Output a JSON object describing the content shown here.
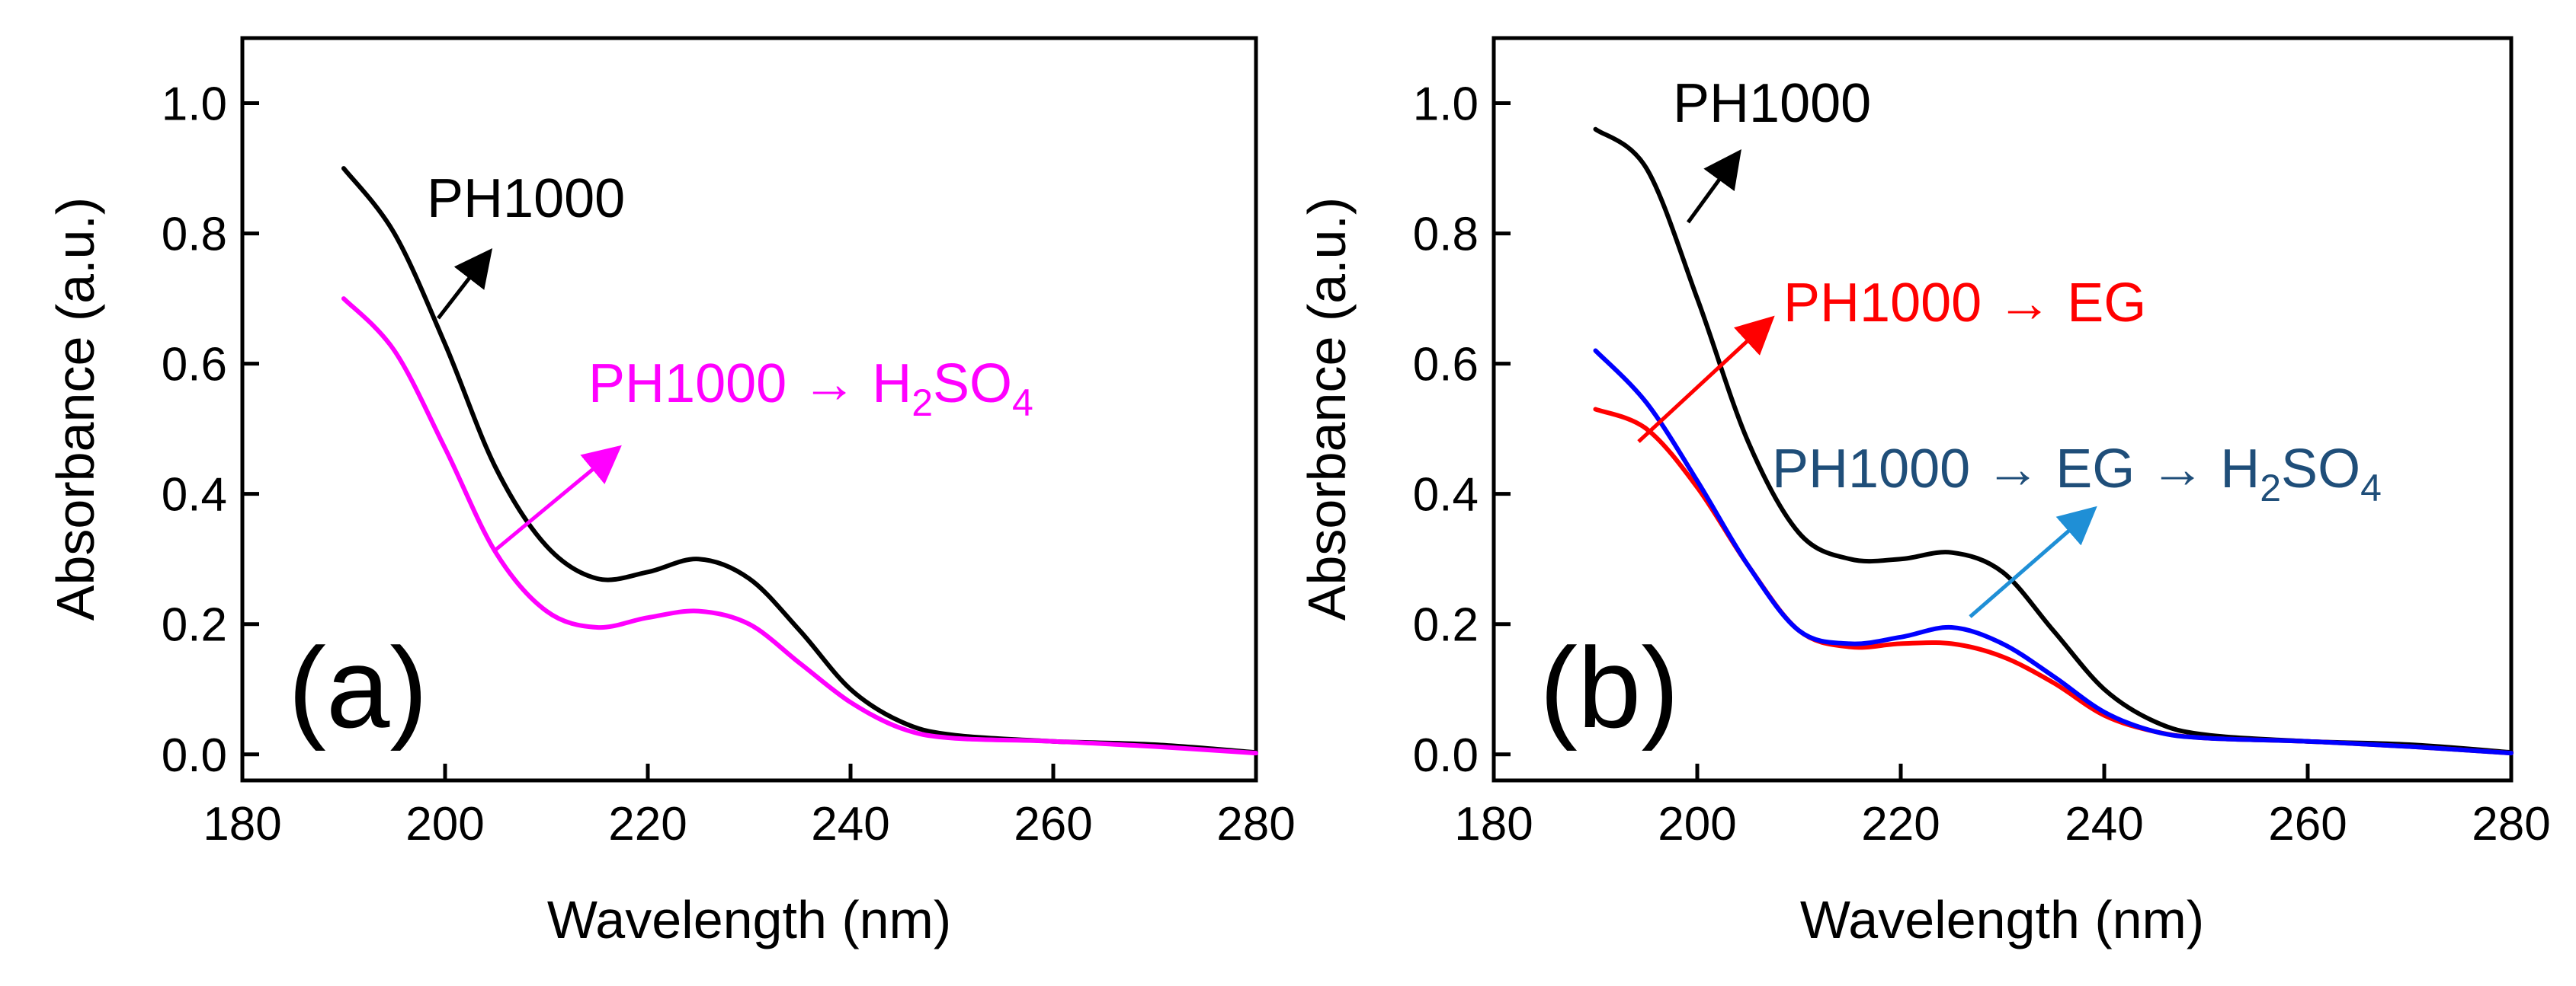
{
  "chart_data": [
    {
      "type": "line",
      "panel_label": "(a)",
      "xlabel": "Wavelength (nm)",
      "ylabel": "Absorbance (a.u.)",
      "xlim": [
        180,
        280
      ],
      "ylim": [
        -0.04,
        1.1
      ],
      "xticks": [
        180,
        200,
        220,
        240,
        260,
        280
      ],
      "yticks": [
        0.0,
        0.2,
        0.4,
        0.6,
        0.8,
        1.0
      ],
      "xtick_labels": [
        "180",
        "200",
        "220",
        "240",
        "260",
        "280"
      ],
      "ytick_labels": [
        "0.0",
        "0.2",
        "0.4",
        "0.6",
        "0.8",
        "1.0"
      ],
      "x": [
        190,
        195,
        200,
        205,
        210,
        215,
        220,
        225,
        230,
        235,
        240,
        245,
        250,
        260,
        270,
        280
      ],
      "series": [
        {
          "name": "PH1000",
          "color": "#000000",
          "values": [
            0.9,
            0.8,
            0.63,
            0.44,
            0.32,
            0.27,
            0.28,
            0.3,
            0.27,
            0.19,
            0.1,
            0.05,
            0.03,
            0.02,
            0.015,
            0.003
          ]
        },
        {
          "name": "PH1000 → H2SO4",
          "color": "#ff00ff",
          "values": [
            0.7,
            0.62,
            0.47,
            0.31,
            0.22,
            0.195,
            0.21,
            0.22,
            0.2,
            0.14,
            0.08,
            0.04,
            0.025,
            0.02,
            0.012,
            0.002
          ]
        }
      ],
      "annotations": [
        {
          "text": "PH1000",
          "color": "#000000",
          "series": "PH1000"
        },
        {
          "text_main": "PH1000 → H",
          "text_sub1": "2",
          "text_mid": "SO",
          "text_sub2": "4",
          "color": "#ff00ff",
          "series": "PH1000 → H2SO4"
        }
      ]
    },
    {
      "type": "line",
      "panel_label": "(b)",
      "xlabel": "Wavelength (nm)",
      "ylabel": "Absorbance (a.u.)",
      "xlim": [
        180,
        280
      ],
      "ylim": [
        -0.04,
        1.1
      ],
      "xticks": [
        180,
        200,
        220,
        240,
        260,
        280
      ],
      "yticks": [
        0.0,
        0.2,
        0.4,
        0.6,
        0.8,
        1.0
      ],
      "xtick_labels": [
        "180",
        "200",
        "220",
        "240",
        "260",
        "280"
      ],
      "ytick_labels": [
        "0.0",
        "0.2",
        "0.4",
        "0.6",
        "0.8",
        "1.0"
      ],
      "x": [
        190,
        195,
        200,
        205,
        210,
        215,
        220,
        225,
        230,
        235,
        240,
        245,
        250,
        260,
        270,
        280
      ],
      "series": [
        {
          "name": "PH1000",
          "color": "#000000",
          "values": [
            0.96,
            0.9,
            0.7,
            0.48,
            0.34,
            0.3,
            0.3,
            0.31,
            0.28,
            0.19,
            0.1,
            0.05,
            0.03,
            0.02,
            0.015,
            0.003
          ]
        },
        {
          "name": "PH1000 → EG",
          "color": "#ff0000",
          "values": [
            0.53,
            0.5,
            0.41,
            0.29,
            0.19,
            0.165,
            0.17,
            0.17,
            0.15,
            0.11,
            0.06,
            0.035,
            0.025,
            0.02,
            0.012,
            0.002
          ]
        },
        {
          "name": "PH1000 → EG → H2SO4",
          "color": "#0000ff",
          "values": [
            0.62,
            0.54,
            0.42,
            0.29,
            0.19,
            0.17,
            0.18,
            0.195,
            0.17,
            0.12,
            0.065,
            0.035,
            0.025,
            0.02,
            0.012,
            0.002
          ]
        }
      ],
      "annotations": [
        {
          "text": "PH1000",
          "color": "#000000",
          "series": "PH1000"
        },
        {
          "text": "PH1000 → EG",
          "color": "#ff0000",
          "series": "PH1000 → EG"
        },
        {
          "text_main": "PH1000 → EG → H",
          "text_sub1": "2",
          "text_mid": "SO",
          "text_sub2": "4",
          "color": "#1f4e79",
          "arrow_color": "#1f8fd6",
          "series": "PH1000 → EG → H2SO4"
        }
      ]
    }
  ]
}
